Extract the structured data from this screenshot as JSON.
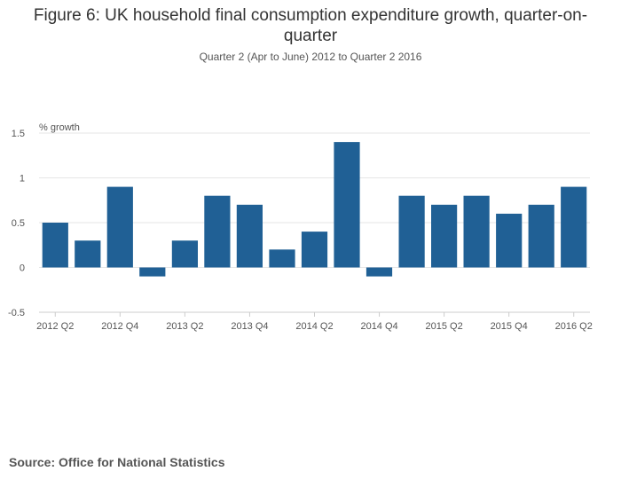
{
  "title": "Figure 6: UK household final consumption expenditure growth, quarter-on-quarter",
  "subtitle": "Quarter 2 (Apr to June) 2012 to Quarter 2 2016",
  "source": "Source: Office for National Statistics",
  "chart_data": {
    "type": "bar",
    "ylabel": "% growth",
    "xlabel": "",
    "ylim": [
      -0.5,
      1.5
    ],
    "yticks": [
      -0.5,
      0,
      0.5,
      1,
      1.5
    ],
    "ytick_labels": [
      "-0.5",
      "0",
      "0.5",
      "1",
      "1.5"
    ],
    "categories": [
      "2012 Q2",
      "2012 Q3",
      "2012 Q4",
      "2013 Q1",
      "2013 Q2",
      "2013 Q3",
      "2013 Q4",
      "2014 Q1",
      "2014 Q2",
      "2014 Q3",
      "2014 Q4",
      "2015 Q1",
      "2015 Q2",
      "2015 Q3",
      "2015 Q4",
      "2016 Q1",
      "2016 Q2"
    ],
    "values": [
      0.5,
      0.3,
      0.9,
      -0.1,
      0.3,
      0.8,
      0.7,
      0.2,
      0.4,
      1.4,
      -0.1,
      0.8,
      0.7,
      0.8,
      0.6,
      0.7,
      0.9
    ],
    "xtick_labels": [
      "2012 Q2",
      "2012 Q4",
      "2013 Q2",
      "2013 Q4",
      "2014 Q2",
      "2014 Q4",
      "2015 Q2",
      "2015 Q4",
      "2016 Q2"
    ],
    "grid": true,
    "bar_color": "#206095"
  }
}
